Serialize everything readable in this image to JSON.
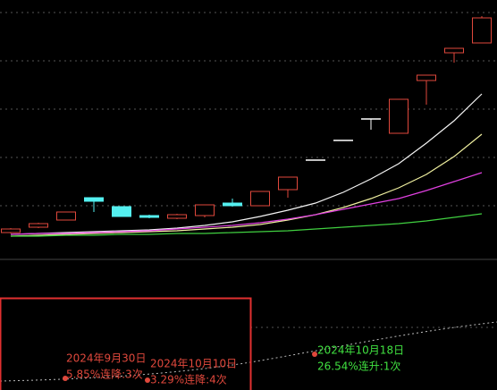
{
  "chart_data": {
    "type": "candlestick",
    "open": [
      30,
      36,
      44,
      69,
      59,
      49,
      46,
      49,
      63,
      60,
      78,
      111,
      133,
      157,
      141,
      200,
      231,
      242
    ],
    "high": [
      35,
      41,
      53,
      69,
      59,
      50,
      51,
      61,
      68,
      76,
      92,
      111,
      133,
      157,
      179,
      206,
      236,
      272
    ],
    "low": [
      29,
      35,
      44,
      53,
      48,
      46,
      45,
      47,
      59,
      60,
      69,
      111,
      133,
      145,
      141,
      173,
      220,
      242
    ],
    "close": [
      34,
      40,
      53,
      65,
      48,
      47,
      50,
      61,
      60,
      76,
      92,
      111,
      133,
      157,
      179,
      206,
      236,
      270
    ],
    "up_color": "#e0483c",
    "down_color": "#54f0f0",
    "flat_color": "#ffffff",
    "ylim": [
      0,
      290
    ],
    "series": [
      {
        "color": "#f4f4f4",
        "values": [
          28,
          29,
          30,
          31,
          32,
          33,
          35,
          38,
          42,
          48,
          55,
          63,
          75,
          90,
          107,
          130,
          155,
          185
        ]
      },
      {
        "color": "#f0f0a0",
        "values": [
          26,
          27,
          28,
          29,
          30,
          31,
          32,
          34,
          36,
          39,
          44,
          50,
          58,
          68,
          80,
          95,
          115,
          140
        ]
      },
      {
        "color": "#e040e0",
        "values": [
          28,
          29,
          29,
          30,
          31,
          32,
          34,
          36,
          38,
          41,
          45,
          50,
          56,
          62,
          68,
          77,
          87,
          97
        ]
      },
      {
        "color": "#40d040",
        "values": [
          26,
          26,
          27,
          27,
          28,
          28,
          29,
          29,
          30,
          31,
          32,
          34,
          36,
          38,
          40,
          43,
          47,
          51
        ]
      }
    ],
    "annotations": [
      {
        "date": "2024年9月30日",
        "text": "5.85%连降:3次",
        "color": "#e0483c"
      },
      {
        "date": "2024年10月10日",
        "text": "3.29%连降:4次",
        "color": "#e0483c"
      },
      {
        "date": "2024年10月18日",
        "text": "26.54%连升:1次",
        "color": "#40e040"
      }
    ]
  }
}
